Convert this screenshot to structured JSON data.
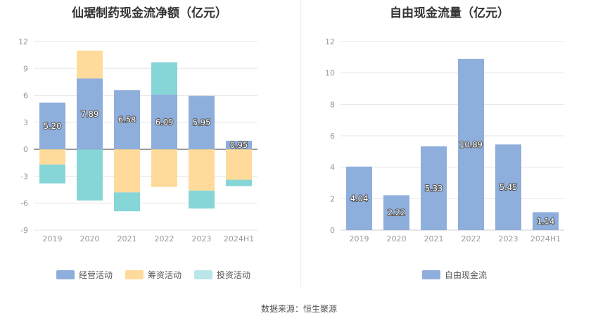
{
  "charts": {
    "left": {
      "title": "仙琚制药现金流净额（亿元）"
    },
    "right": {
      "title": "自由现金流量（亿元）"
    }
  },
  "colors": {
    "operating": "#8eaedc",
    "financing": "#fedb9b",
    "investing": "#86d6d8",
    "fcf": "#8eaedc"
  },
  "source": "数据来源：恒生聚源",
  "chart_data": [
    {
      "type": "bar",
      "stacked": true,
      "title": "仙琚制药现金流净额（亿元）",
      "categories": [
        "2019",
        "2020",
        "2021",
        "2022",
        "2023",
        "2024H1"
      ],
      "ylim": [
        -9,
        12
      ],
      "yticks": [
        -9,
        -6,
        -3,
        0,
        3,
        6,
        9,
        12
      ],
      "grid": true,
      "legend_position": "bottom",
      "series": [
        {
          "name": "经营活动",
          "color": "#8eaedc",
          "values": [
            5.2,
            7.89,
            6.58,
            6.09,
            5.95,
            0.95
          ],
          "labels": [
            "5.20",
            "7.89",
            "6.58",
            "6.09",
            "5.95",
            "0.95"
          ]
        },
        {
          "name": "筹资活动",
          "color": "#fedb9b",
          "values": [
            -1.7,
            3.1,
            -4.8,
            -4.2,
            -4.6,
            -3.4
          ]
        },
        {
          "name": "投资活动",
          "color": "#86d6d8",
          "values": [
            -2.1,
            -5.7,
            -2.1,
            3.6,
            -2.0,
            -0.7
          ]
        }
      ]
    },
    {
      "type": "bar",
      "title": "自由现金流量（亿元）",
      "categories": [
        "2019",
        "2020",
        "2021",
        "2022",
        "2023",
        "2024H1"
      ],
      "ylim": [
        0,
        12
      ],
      "yticks": [
        0,
        2,
        4,
        6,
        8,
        10,
        12
      ],
      "grid": true,
      "legend_position": "bottom",
      "series": [
        {
          "name": "自由现金流",
          "color": "#8eaedc",
          "values": [
            4.04,
            2.22,
            5.33,
            10.89,
            5.45,
            1.14
          ],
          "labels": [
            "4.04",
            "2.22",
            "5.33",
            "10.89",
            "5.45",
            "1.14"
          ]
        }
      ]
    }
  ]
}
